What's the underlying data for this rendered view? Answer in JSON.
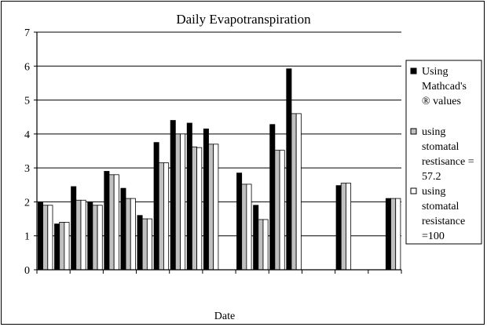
{
  "chart_data": {
    "type": "bar",
    "title": "Daily Evapotranspiration",
    "xlabel": "Date",
    "ylabel": "",
    "ylim": [
      0,
      7
    ],
    "yticks": [
      0,
      1,
      2,
      3,
      4,
      5,
      6,
      7
    ],
    "grid": true,
    "legend_position": "right",
    "slots": 22,
    "slot_data": [
      [
        2.0,
        1.9,
        1.9
      ],
      [
        1.35,
        1.4,
        1.4
      ],
      [
        2.45,
        2.05,
        2.05
      ],
      [
        2.0,
        1.9,
        1.9
      ],
      [
        2.9,
        2.8,
        2.8
      ],
      [
        2.4,
        2.1,
        2.1
      ],
      [
        1.6,
        1.5,
        1.5
      ],
      [
        3.75,
        3.15,
        3.15
      ],
      [
        4.4,
        4.0,
        4.0
      ],
      [
        4.32,
        3.62,
        3.6
      ],
      [
        4.15,
        3.7,
        3.7
      ],
      null,
      [
        2.85,
        2.52,
        2.52
      ],
      [
        1.9,
        1.48,
        1.48
      ],
      [
        4.28,
        3.52,
        3.52
      ],
      [
        5.92,
        4.6,
        4.6
      ],
      null,
      null,
      [
        2.48,
        2.55,
        2.55
      ],
      null,
      null,
      [
        2.1,
        2.1,
        2.1
      ]
    ],
    "series": [
      {
        "name": "Using Mathcad's ® values",
        "color": "#000000"
      },
      {
        "name": "using stomatal restisance = 57.2",
        "color": "#c0c0c0"
      },
      {
        "name": "using stomatal resistance =100",
        "color": "#ffffff"
      }
    ]
  },
  "legend": {
    "entries": [
      [
        "Using",
        "Mathcad's",
        "® values"
      ],
      [
        "using",
        "stomatal",
        "restisance =",
        "57.2"
      ],
      [
        "using",
        "stomatal",
        "resistance",
        "=100"
      ]
    ]
  }
}
